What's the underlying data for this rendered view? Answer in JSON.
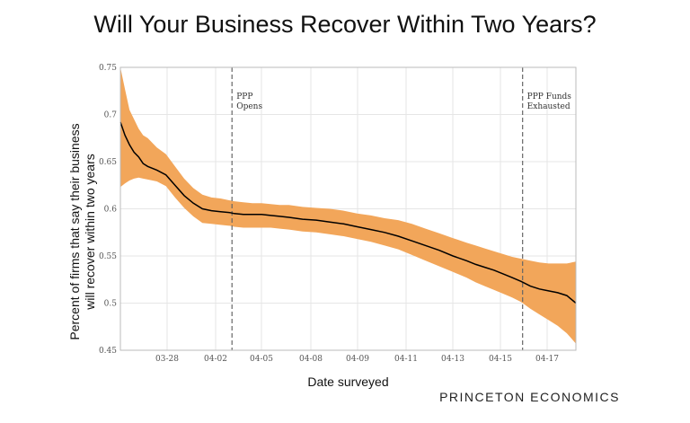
{
  "chart_data": {
    "type": "line",
    "title": "Will Your Business Recover Within Two Years?",
    "xlabel": "Date surveyed",
    "ylabel_lines": [
      "Percent of firms that say their business",
      "will recover within two years"
    ],
    "ylim": [
      0.45,
      0.75
    ],
    "yticks": [
      0.45,
      0.5,
      0.55,
      0.6,
      0.65,
      0.7,
      0.75
    ],
    "xlim": [
      "03-25",
      "04-18"
    ],
    "xticks": [
      "03-28",
      "04-02",
      "04-05",
      "04-08",
      "04-09",
      "04-11",
      "04-13",
      "04-15",
      "04-17"
    ],
    "grid": true,
    "series": [
      {
        "color": "#000000",
        "band_color": "#f2a65a",
        "x": [
          0,
          1,
          2,
          3,
          4,
          5,
          6,
          8,
          10,
          12,
          14,
          16,
          18,
          20,
          22,
          24,
          25,
          27,
          29,
          31,
          33,
          35,
          37,
          40,
          43,
          46,
          49,
          52,
          55,
          58,
          61,
          64,
          67,
          70,
          73,
          76,
          78,
          80,
          82,
          84,
          86,
          88,
          90,
          92,
          94,
          96,
          98,
          100
        ],
        "values": [
          0.692,
          0.678,
          0.668,
          0.66,
          0.655,
          0.648,
          0.645,
          0.641,
          0.636,
          0.625,
          0.614,
          0.606,
          0.6,
          0.598,
          0.597,
          0.596,
          0.595,
          0.594,
          0.594,
          0.594,
          0.593,
          0.592,
          0.591,
          0.589,
          0.588,
          0.586,
          0.584,
          0.581,
          0.578,
          0.575,
          0.571,
          0.566,
          0.561,
          0.556,
          0.55,
          0.545,
          0.541,
          0.538,
          0.535,
          0.531,
          0.527,
          0.523,
          0.518,
          0.515,
          0.513,
          0.511,
          0.508,
          0.5
        ],
        "upper": [
          0.75,
          0.727,
          0.705,
          0.695,
          0.685,
          0.678,
          0.675,
          0.665,
          0.658,
          0.645,
          0.632,
          0.622,
          0.615,
          0.612,
          0.611,
          0.609,
          0.608,
          0.607,
          0.606,
          0.606,
          0.605,
          0.604,
          0.604,
          0.602,
          0.601,
          0.6,
          0.598,
          0.595,
          0.593,
          0.59,
          0.588,
          0.584,
          0.579,
          0.574,
          0.569,
          0.564,
          0.561,
          0.558,
          0.555,
          0.552,
          0.549,
          0.547,
          0.545,
          0.543,
          0.542,
          0.542,
          0.542,
          0.544
        ],
        "lower": [
          0.623,
          0.627,
          0.63,
          0.632,
          0.633,
          0.632,
          0.631,
          0.629,
          0.624,
          0.612,
          0.601,
          0.592,
          0.585,
          0.584,
          0.583,
          0.582,
          0.581,
          0.58,
          0.58,
          0.58,
          0.58,
          0.579,
          0.578,
          0.576,
          0.575,
          0.573,
          0.571,
          0.568,
          0.565,
          0.561,
          0.557,
          0.551,
          0.545,
          0.539,
          0.533,
          0.527,
          0.522,
          0.518,
          0.514,
          0.51,
          0.506,
          0.501,
          0.494,
          0.488,
          0.482,
          0.476,
          0.468,
          0.457
        ]
      }
    ],
    "vlines": [
      {
        "label_lines": [
          "PPP",
          "Opens"
        ],
        "x": 24.5
      },
      {
        "label_lines": [
          "PPP Funds",
          "Exhausted"
        ],
        "x": 88.3
      }
    ]
  },
  "brand": "PRINCETON ECONOMICS"
}
